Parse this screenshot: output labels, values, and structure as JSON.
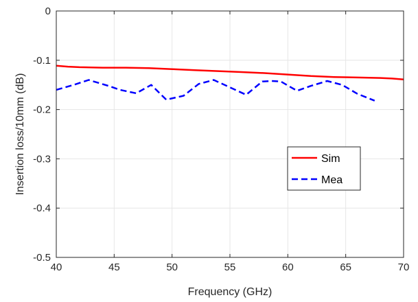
{
  "chart_data": {
    "type": "line",
    "title": "",
    "xlabel": "Frequency (GHz)",
    "ylabel": "Insertion loss/10mm (dB)",
    "xlim": [
      40,
      70
    ],
    "ylim": [
      -0.5,
      0
    ],
    "xticks": [
      40,
      45,
      50,
      55,
      60,
      65,
      70
    ],
    "yticks": [
      0,
      -0.1,
      -0.2,
      -0.3,
      -0.4,
      -0.5
    ],
    "xtick_labels": [
      "40",
      "45",
      "50",
      "55",
      "60",
      "65",
      "70"
    ],
    "ytick_labels": [
      "0",
      "-0.1",
      "-0.2",
      "-0.3",
      "-0.4",
      "-0.5"
    ],
    "grid": true,
    "legend_position": "center-right",
    "series": [
      {
        "name": "Sim",
        "color": "#ff0000",
        "style": "solid",
        "x": [
          40,
          41,
          42,
          44,
          46,
          48,
          50,
          52,
          54,
          56,
          58,
          60,
          62,
          64,
          66,
          68,
          69,
          70
        ],
        "y": [
          -0.111,
          -0.113,
          -0.114,
          -0.115,
          -0.115,
          -0.116,
          -0.118,
          -0.12,
          -0.122,
          -0.124,
          -0.126,
          -0.129,
          -0.132,
          -0.134,
          -0.135,
          -0.136,
          -0.137,
          -0.139
        ]
      },
      {
        "name": "Mea",
        "color": "#0000ff",
        "style": "dashed",
        "x": [
          40,
          41.5,
          42.8,
          44.5,
          45.5,
          46.9,
          48.2,
          49.5,
          51,
          52.3,
          53.6,
          55,
          56.4,
          57.8,
          58.6,
          59.4,
          60.8,
          62,
          63.4,
          64.7,
          66,
          67.5
        ],
        "y": [
          -0.16,
          -0.15,
          -0.14,
          -0.152,
          -0.16,
          -0.167,
          -0.15,
          -0.18,
          -0.172,
          -0.148,
          -0.14,
          -0.155,
          -0.17,
          -0.143,
          -0.142,
          -0.143,
          -0.162,
          -0.152,
          -0.142,
          -0.15,
          -0.168,
          -0.182
        ]
      }
    ]
  }
}
